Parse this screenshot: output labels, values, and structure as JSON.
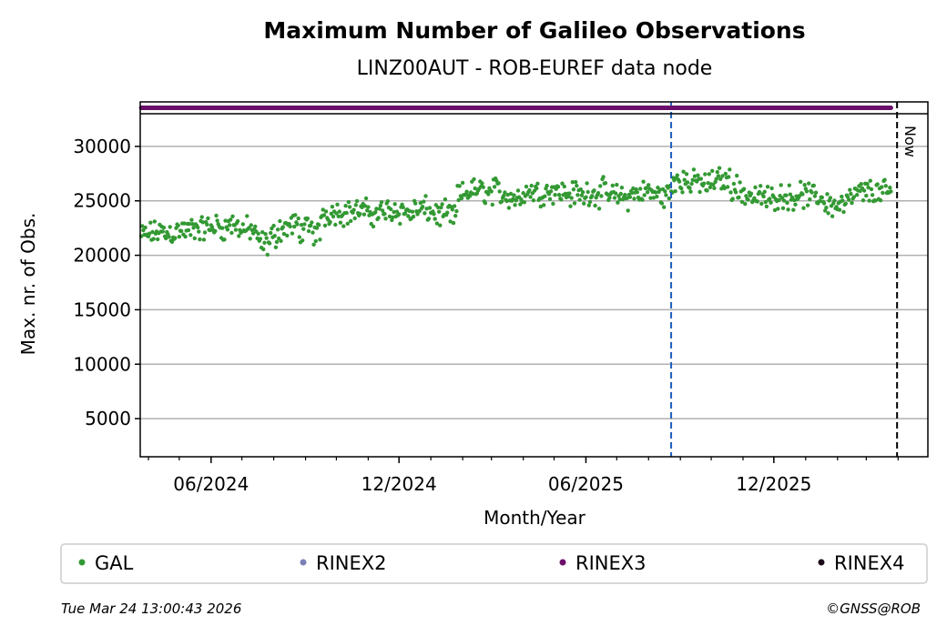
{
  "chart_data": {
    "type": "scatter",
    "title": "Maximum Number of Galileo Observations",
    "subtitle": "LINZ00AUT - ROB-EUREF data node",
    "xlabel": "Month/Year",
    "ylabel": "Max. nr. of Obs.",
    "x_units": "days since 2024-06-01",
    "xlim": [
      -69,
      698
    ],
    "ylim": [
      1500,
      33000
    ],
    "yticks": [
      5000,
      10000,
      15000,
      20000,
      25000,
      30000
    ],
    "xticks": [
      {
        "day": 0,
        "label": "06/2024"
      },
      {
        "day": 183,
        "label": "12/2024"
      },
      {
        "day": 365,
        "label": "06/2025"
      },
      {
        "day": 548,
        "label": "12/2025"
      }
    ],
    "grid": "horizontal",
    "vlines": [
      {
        "day": 448,
        "style": "dashed",
        "color": "#1f5fbf",
        "label": ""
      },
      {
        "day": 668,
        "style": "dashed",
        "color": "#000000",
        "label": "Now"
      }
    ],
    "series": [
      {
        "name": "GAL",
        "color": "#339933",
        "start_day": -68,
        "step_days": 7,
        "daily_spread": 1400,
        "weekly_mean": [
          21800,
          22000,
          22200,
          22000,
          22100,
          22300,
          22200,
          22500,
          22400,
          22600,
          22700,
          22500,
          22800,
          22600,
          22400,
          22300,
          21200,
          21000,
          21800,
          22400,
          22600,
          22800,
          22300,
          22500,
          22000,
          23800,
          23900,
          24000,
          23900,
          24000,
          24100,
          24000,
          23800,
          24000,
          24100,
          24200,
          24000,
          23900,
          24100,
          24200,
          24000,
          23700,
          23800,
          23600,
          25500,
          25800,
          26000,
          25900,
          25700,
          26000,
          25600,
          25400,
          25200,
          25800,
          25900,
          25700,
          25900,
          26000,
          25800,
          25600,
          25700,
          25500,
          25800,
          25600,
          25900,
          25500,
          25400,
          25300,
          25600,
          25700,
          25900,
          25600,
          25500,
          25700,
          27000,
          26900,
          26600,
          26800,
          26500,
          26700,
          27000,
          26900,
          26300,
          25800,
          25500,
          25400,
          25300,
          25200,
          25400,
          25500,
          25300,
          25600,
          25500,
          25400,
          25300,
          24800,
          24600,
          24700,
          25000,
          25600,
          25800,
          25900,
          25700,
          25800,
          25900
        ]
      },
      {
        "name": "RINEX2",
        "color": "#7b7fb5"
      },
      {
        "name": "RINEX3",
        "color": "#6b0f6b",
        "start_day": -68,
        "end_day": 662
      },
      {
        "name": "RINEX4",
        "color": "#1a0a1a"
      }
    ],
    "legend_position": "bottom"
  },
  "footer": {
    "timestamp": "Tue Mar 24 13:00:43 2026",
    "copyright": "©GNSS@ROB"
  }
}
